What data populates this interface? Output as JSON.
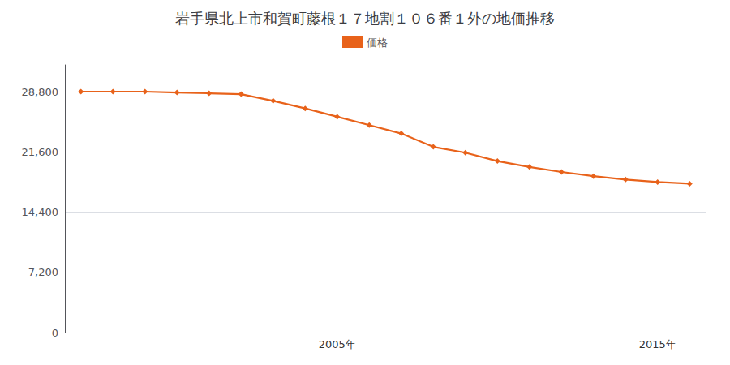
{
  "chart_data": {
    "type": "line",
    "title": "岩手県北上市和賀町藤根１７地割１０６番１外の地価推移",
    "x": [
      1997,
      1998,
      1999,
      2000,
      2001,
      2002,
      2003,
      2004,
      2005,
      2006,
      2007,
      2008,
      2009,
      2010,
      2011,
      2012,
      2013,
      2014,
      2015,
      2016
    ],
    "series": [
      {
        "name": "価格",
        "color": "#e8621a",
        "marker": "diamond",
        "values": [
          28800,
          28800,
          28800,
          28700,
          28600,
          28500,
          27700,
          26800,
          25800,
          24800,
          23800,
          22200,
          21500,
          20500,
          19800,
          19200,
          18700,
          18300,
          18000,
          17800
        ]
      }
    ],
    "xlim": [
      1996.5,
      2016.5
    ],
    "xticks": [
      {
        "value": 2005,
        "label": "2005年"
      },
      {
        "value": 2015,
        "label": "2015年"
      }
    ],
    "ylim": [
      0,
      32000
    ],
    "yticks": [
      0,
      {
        "value": 7200,
        "label": "7,200"
      },
      {
        "value": 14400,
        "label": "14,400"
      },
      {
        "value": 21600,
        "label": "21,600"
      },
      {
        "value": 28800,
        "label": "28,800"
      }
    ],
    "grid": true,
    "legend": "top"
  }
}
